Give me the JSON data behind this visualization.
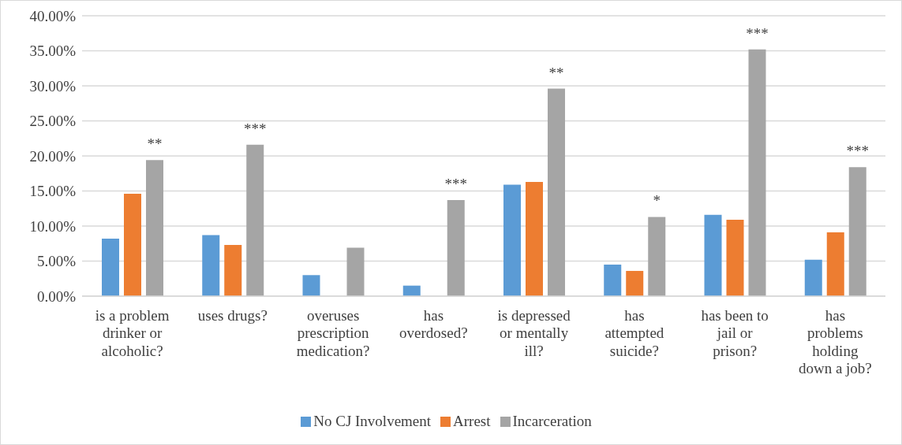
{
  "chart_data": {
    "type": "bar",
    "categories": [
      "is a problem drinker or alcoholic?",
      "uses drugs?",
      "overuses prescription medication?",
      "has overdosed?",
      "is depressed or mentally ill?",
      "has attempted suicide?",
      "has been to jail or prison?",
      "has problems holding down a job?"
    ],
    "series": [
      {
        "name": "No CJ Involvement",
        "color": "#5b9bd5",
        "values": [
          8.2,
          8.7,
          3.0,
          1.5,
          15.9,
          4.5,
          11.6,
          5.2
        ]
      },
      {
        "name": "Arrest",
        "color": "#ed7d31",
        "values": [
          14.6,
          7.3,
          null,
          null,
          16.3,
          3.6,
          10.9,
          9.1
        ]
      },
      {
        "name": "Incarceration",
        "color": "#a5a5a5",
        "values": [
          19.4,
          21.6,
          6.9,
          13.7,
          29.6,
          11.3,
          35.2,
          18.4
        ],
        "value_labels": [
          "**",
          "***",
          null,
          "***",
          "**",
          "*",
          "***",
          "***"
        ]
      }
    ],
    "ylim": [
      0,
      40
    ],
    "yticks": [
      {
        "value": 0,
        "label": "0.00%"
      },
      {
        "value": 5,
        "label": "5.00%"
      },
      {
        "value": 10,
        "label": "10.00%"
      },
      {
        "value": 15,
        "label": "15.00%"
      },
      {
        "value": 20,
        "label": "20.00%"
      },
      {
        "value": 25,
        "label": "25.00%"
      },
      {
        "value": 30,
        "label": "30.00%"
      },
      {
        "value": 35,
        "label": "35.00%"
      },
      {
        "value": 40,
        "label": "40.00%"
      }
    ],
    "grid": "y",
    "legend": "bottom"
  }
}
